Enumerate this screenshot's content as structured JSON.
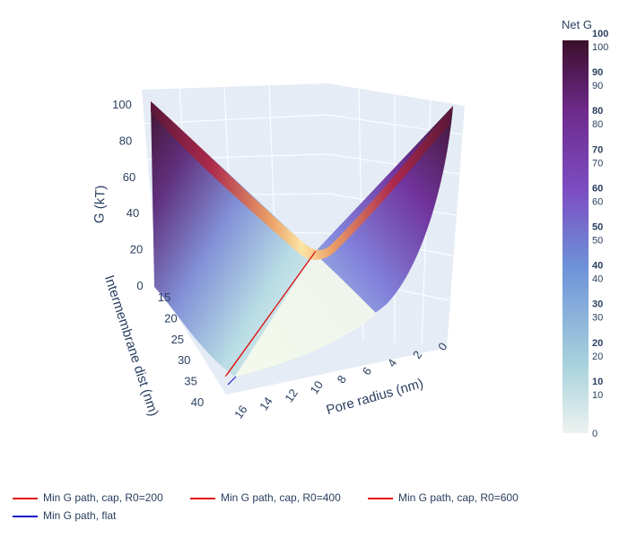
{
  "chart_data": {
    "type": "surface",
    "axes": {
      "x": {
        "label": "Pore radius (nm)",
        "ticks": [
          "0",
          "2",
          "4",
          "6",
          "8",
          "10",
          "12",
          "14",
          "16"
        ],
        "range": [
          0,
          17
        ]
      },
      "y": {
        "label": "Intermembrane dist (nm)",
        "ticks": [
          "15",
          "20",
          "25",
          "30",
          "35",
          "40"
        ],
        "range": [
          13,
          42
        ]
      },
      "z": {
        "label": "G (kT)",
        "ticks": [
          "0",
          "20",
          "40",
          "60",
          "80",
          "100"
        ],
        "range": [
          0,
          104
        ]
      }
    },
    "surface": {
      "name": "Net G",
      "description_points": [
        {
          "x": 16,
          "y": 13,
          "z": 100
        },
        {
          "x": 0,
          "y": 13,
          "z": 100
        },
        {
          "x": 7,
          "y": 13,
          "z": 18
        },
        {
          "x": 16,
          "y": 42,
          "z": 0
        },
        {
          "x": 0,
          "y": 42,
          "z": 0
        }
      ]
    },
    "colorbar": {
      "title": "Net G",
      "ticks_bold": [
        "10",
        "20",
        "30",
        "40",
        "50",
        "60",
        "70",
        "80",
        "90",
        "100"
      ],
      "ticks_regular": [
        "0",
        "10",
        "20",
        "30",
        "40",
        "50",
        "60",
        "70",
        "80",
        "90",
        "100"
      ],
      "range": [
        0,
        100
      ],
      "colors": [
        "#edf2f0",
        "#a6d1dc",
        "#6e93d9",
        "#7c4dc2",
        "#6e2a8c",
        "#3b0f2a"
      ]
    },
    "series": [
      {
        "name": "Min G path, cap, R0=200",
        "color": "#e01010"
      },
      {
        "name": "Min G path, cap, R0=400",
        "color": "#e01010"
      },
      {
        "name": "Min G path, cap, R0=600",
        "color": "#e01010"
      },
      {
        "name": "Min G path, flat",
        "color": "#1010c8"
      }
    ],
    "grid": true,
    "legend_position": "bottom-left"
  },
  "legend": {
    "items": [
      {
        "label": "Min G path, cap, R0=200",
        "color": "#e01010"
      },
      {
        "label": "Min G path, cap, R0=400",
        "color": "#e01010"
      },
      {
        "label": "Min G path, cap, R0=600",
        "color": "#e01010"
      },
      {
        "label": "Min G path, flat",
        "color": "#1010c8"
      }
    ]
  }
}
